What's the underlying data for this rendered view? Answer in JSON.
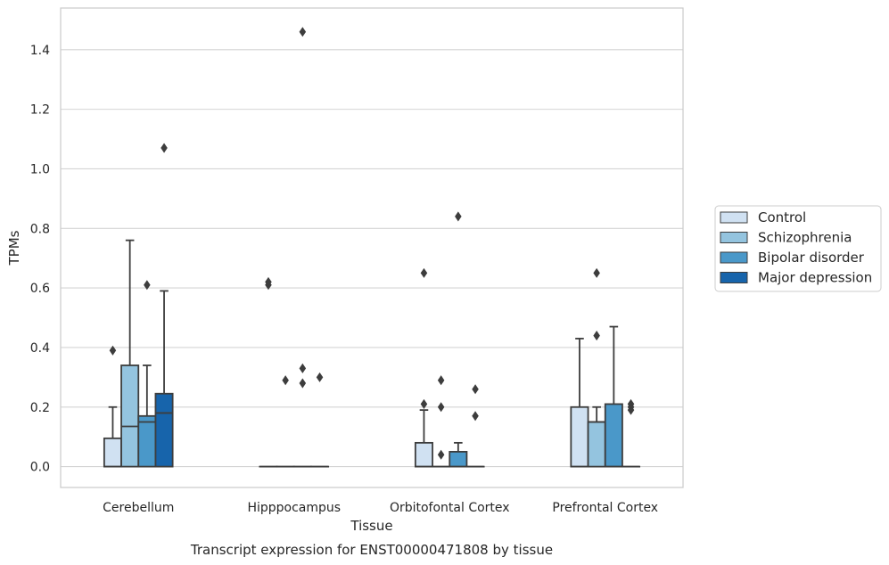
{
  "chart_data": {
    "type": "box",
    "title": "",
    "xlabel": "Tissue",
    "ylabel": "TPMs",
    "caption": "Transcript expression for ENST00000471808 by tissue",
    "ylim": [
      -0.07,
      1.54
    ],
    "yticks": [
      0.0,
      0.2,
      0.4,
      0.6,
      0.8,
      1.0,
      1.2,
      1.4
    ],
    "ytick_labels": [
      "0.0",
      "0.2",
      "0.4",
      "0.6",
      "0.8",
      "1.0",
      "1.2",
      "1.4"
    ],
    "grid": "horizontal",
    "legend_position": "outside-right",
    "categories": [
      "Cerebellum",
      "Hipppocampus",
      "Orbitofontal Cortex",
      "Prefrontal Cortex"
    ],
    "series": [
      {
        "name": "Control",
        "color": "#d0e1f2",
        "boxes": [
          {
            "q1": 0.0,
            "median": 0.0,
            "q3": 0.095,
            "whisker_low": 0.0,
            "whisker_high": 0.2,
            "outliers": [
              0.39
            ]
          },
          {
            "q1": 0.0,
            "median": 0.0,
            "q3": 0.0,
            "whisker_low": 0.0,
            "whisker_high": 0.0,
            "outliers": [
              0.61,
              0.62
            ]
          },
          {
            "q1": 0.0,
            "median": 0.0,
            "q3": 0.08,
            "whisker_low": 0.0,
            "whisker_high": 0.19,
            "outliers": [
              0.21,
              0.65
            ]
          },
          {
            "q1": 0.0,
            "median": 0.0,
            "q3": 0.2,
            "whisker_low": 0.0,
            "whisker_high": 0.43,
            "outliers": []
          }
        ]
      },
      {
        "name": "Schizophrenia",
        "color": "#94c4df",
        "boxes": [
          {
            "q1": 0.0,
            "median": 0.135,
            "q3": 0.34,
            "whisker_low": 0.0,
            "whisker_high": 0.76,
            "outliers": []
          },
          {
            "q1": 0.0,
            "median": 0.0,
            "q3": 0.0,
            "whisker_low": 0.0,
            "whisker_high": 0.0,
            "outliers": [
              0.29
            ]
          },
          {
            "q1": 0.0,
            "median": 0.0,
            "q3": 0.0,
            "whisker_low": 0.0,
            "whisker_high": 0.0,
            "outliers": [
              0.04,
              0.2,
              0.29
            ]
          },
          {
            "q1": 0.0,
            "median": 0.15,
            "q3": 0.15,
            "whisker_low": 0.0,
            "whisker_high": 0.2,
            "outliers": [
              0.44,
              0.65
            ]
          }
        ]
      },
      {
        "name": "Bipolar disorder",
        "color": "#4a98c9",
        "boxes": [
          {
            "q1": 0.0,
            "median": 0.15,
            "q3": 0.17,
            "whisker_low": 0.0,
            "whisker_high": 0.34,
            "outliers": [
              0.61
            ]
          },
          {
            "q1": 0.0,
            "median": 0.0,
            "q3": 0.0,
            "whisker_low": 0.0,
            "whisker_high": 0.0,
            "outliers": [
              0.28,
              0.33,
              1.46
            ]
          },
          {
            "q1": 0.0,
            "median": 0.0,
            "q3": 0.05,
            "whisker_low": 0.0,
            "whisker_high": 0.08,
            "outliers": [
              0.84
            ]
          },
          {
            "q1": 0.0,
            "median": 0.0,
            "q3": 0.21,
            "whisker_low": 0.0,
            "whisker_high": 0.47,
            "outliers": []
          }
        ]
      },
      {
        "name": "Major depression",
        "color": "#1764ab",
        "boxes": [
          {
            "q1": 0.0,
            "median": 0.18,
            "q3": 0.245,
            "whisker_low": 0.0,
            "whisker_high": 0.59,
            "outliers": [
              1.07
            ]
          },
          {
            "q1": 0.0,
            "median": 0.0,
            "q3": 0.0,
            "whisker_low": 0.0,
            "whisker_high": 0.0,
            "outliers": [
              0.3
            ]
          },
          {
            "q1": 0.0,
            "median": 0.0,
            "q3": 0.0,
            "whisker_low": 0.0,
            "whisker_high": 0.0,
            "outliers": [
              0.17,
              0.26
            ]
          },
          {
            "q1": 0.0,
            "median": 0.0,
            "q3": 0.0,
            "whisker_low": 0.0,
            "whisker_high": 0.0,
            "outliers": [
              0.19,
              0.2,
              0.21
            ]
          }
        ]
      }
    ]
  }
}
